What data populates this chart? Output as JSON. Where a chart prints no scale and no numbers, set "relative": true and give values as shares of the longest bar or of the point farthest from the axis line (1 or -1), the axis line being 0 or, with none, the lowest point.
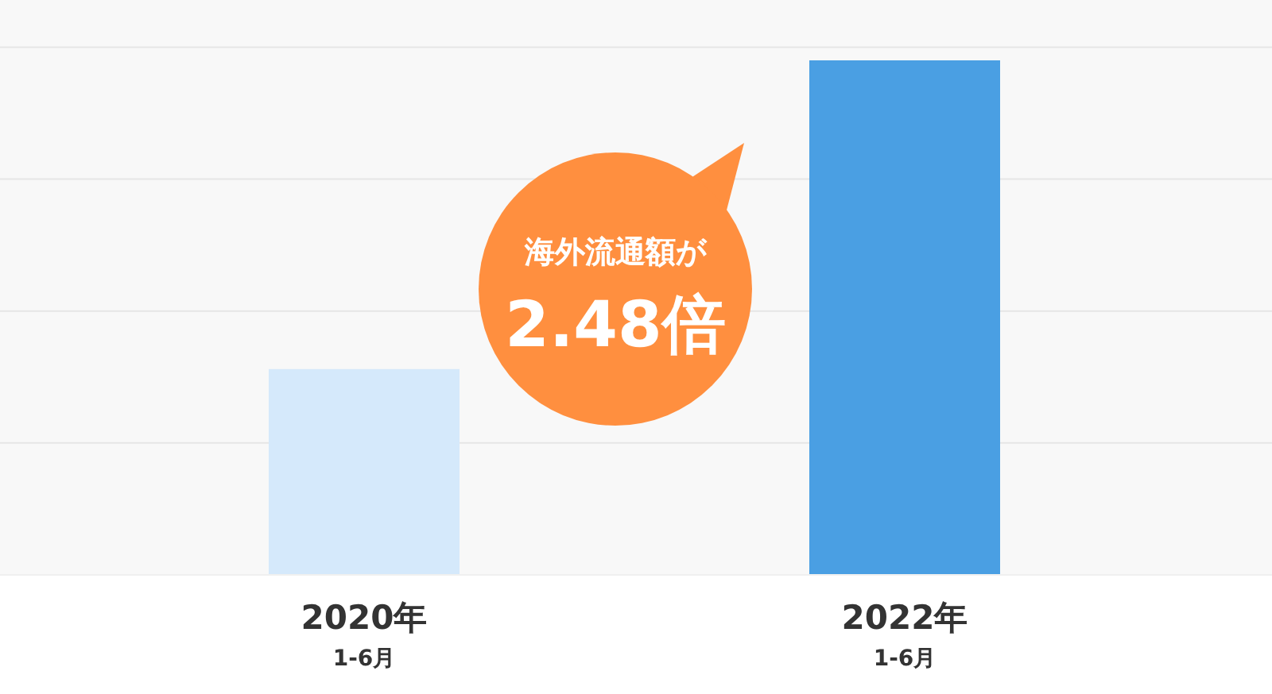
{
  "chart_data": {
    "type": "bar",
    "relative": true,
    "categories": [
      "2020年\n1-6月",
      "2022年\n1-6月"
    ],
    "values": [
      0.4,
      1
    ],
    "colors": [
      "#d5e9fb",
      "#4a9fe3"
    ],
    "grid": "y",
    "annotations": [
      "海外流通額が",
      "2.48倍"
    ]
  }
}
